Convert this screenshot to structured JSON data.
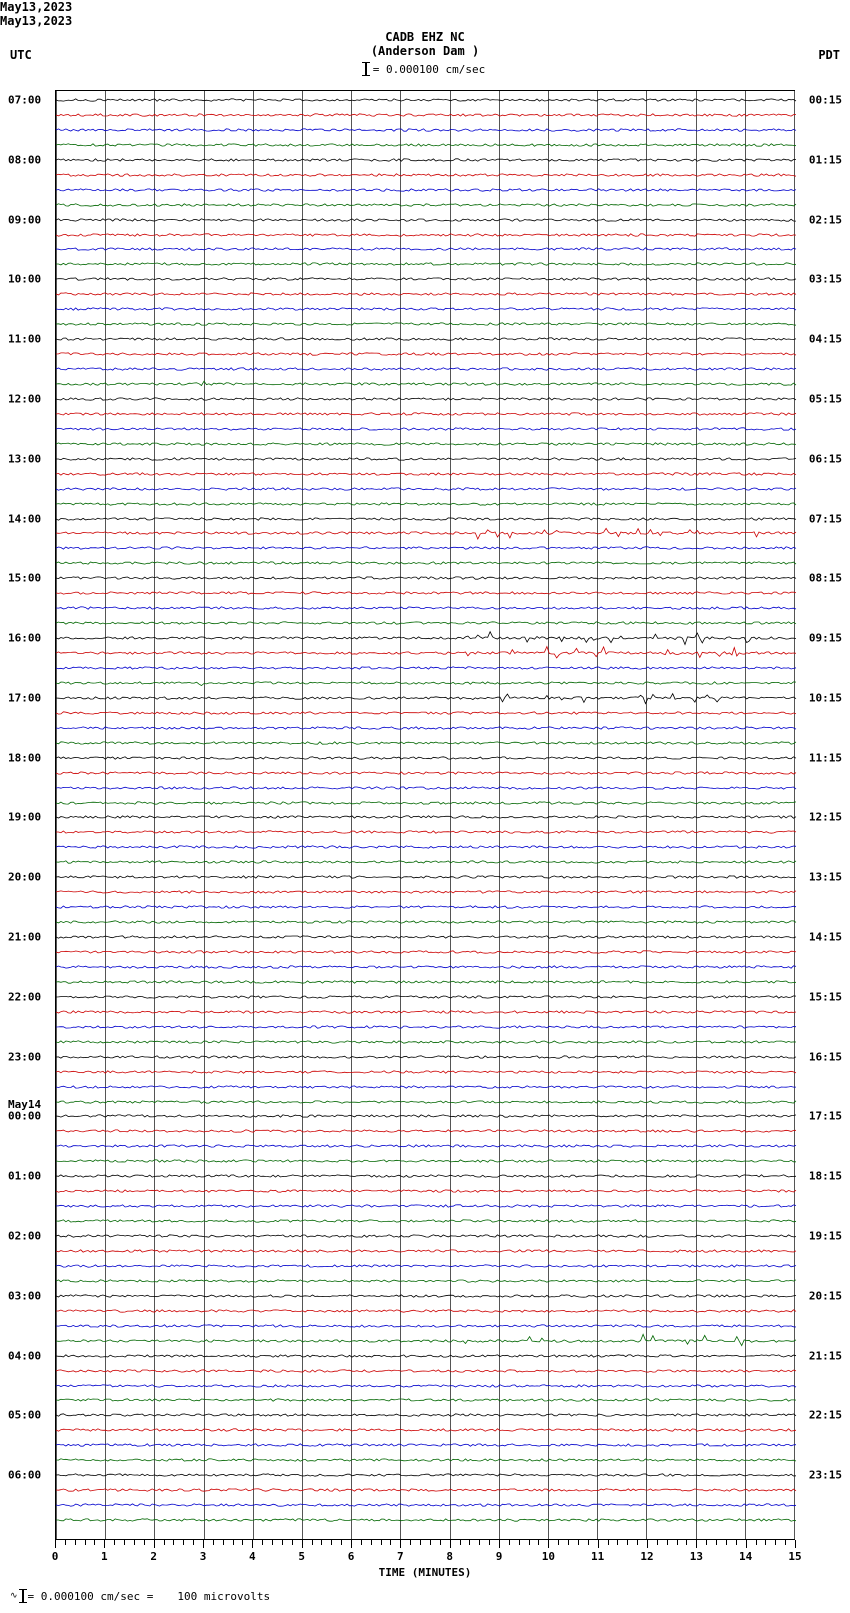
{
  "header": {
    "station": "CADB EHZ NC",
    "location": "(Anderson Dam )",
    "scale_text": "= 0.000100 cm/sec"
  },
  "timezone_left": "UTC",
  "timezone_right": "PDT",
  "date_left": "May13,2023",
  "date_right": "May13,2023",
  "footer": {
    "scale": "= 0.000100 cm/sec =",
    "volts": "100 microvolts"
  },
  "x_axis": {
    "title": "TIME (MINUTES)",
    "min": 0,
    "max": 15,
    "major_ticks": [
      0,
      1,
      2,
      3,
      4,
      5,
      6,
      7,
      8,
      9,
      10,
      11,
      12,
      13,
      14,
      15
    ]
  },
  "colors": {
    "black": "#000000",
    "red": "#cc0000",
    "blue": "#0000cc",
    "green": "#006600",
    "grid": "#555555",
    "background": "#ffffff"
  },
  "plot": {
    "num_traces": 96,
    "trace_spacing": 15.0,
    "color_cycle": [
      "#000000",
      "#cc0000",
      "#0000cc",
      "#006600"
    ],
    "left_hour_labels": [
      {
        "idx": 0,
        "text": "07:00"
      },
      {
        "idx": 4,
        "text": "08:00"
      },
      {
        "idx": 8,
        "text": "09:00"
      },
      {
        "idx": 12,
        "text": "10:00"
      },
      {
        "idx": 16,
        "text": "11:00"
      },
      {
        "idx": 20,
        "text": "12:00"
      },
      {
        "idx": 24,
        "text": "13:00"
      },
      {
        "idx": 28,
        "text": "14:00"
      },
      {
        "idx": 32,
        "text": "15:00"
      },
      {
        "idx": 36,
        "text": "16:00"
      },
      {
        "idx": 40,
        "text": "17:00"
      },
      {
        "idx": 44,
        "text": "18:00"
      },
      {
        "idx": 48,
        "text": "19:00"
      },
      {
        "idx": 52,
        "text": "20:00"
      },
      {
        "idx": 56,
        "text": "21:00"
      },
      {
        "idx": 60,
        "text": "22:00"
      },
      {
        "idx": 64,
        "text": "23:00"
      },
      {
        "idx": 68,
        "text": "00:00",
        "day": "May14"
      },
      {
        "idx": 72,
        "text": "01:00"
      },
      {
        "idx": 76,
        "text": "02:00"
      },
      {
        "idx": 80,
        "text": "03:00"
      },
      {
        "idx": 84,
        "text": "04:00"
      },
      {
        "idx": 88,
        "text": "05:00"
      },
      {
        "idx": 92,
        "text": "06:00"
      }
    ],
    "right_hour_labels": [
      {
        "idx": 0,
        "text": "00:15"
      },
      {
        "idx": 4,
        "text": "01:15"
      },
      {
        "idx": 8,
        "text": "02:15"
      },
      {
        "idx": 12,
        "text": "03:15"
      },
      {
        "idx": 16,
        "text": "04:15"
      },
      {
        "idx": 20,
        "text": "05:15"
      },
      {
        "idx": 24,
        "text": "06:15"
      },
      {
        "idx": 28,
        "text": "07:15"
      },
      {
        "idx": 32,
        "text": "08:15"
      },
      {
        "idx": 36,
        "text": "09:15"
      },
      {
        "idx": 40,
        "text": "10:15"
      },
      {
        "idx": 44,
        "text": "11:15"
      },
      {
        "idx": 48,
        "text": "12:15"
      },
      {
        "idx": 52,
        "text": "13:15"
      },
      {
        "idx": 56,
        "text": "14:15"
      },
      {
        "idx": 60,
        "text": "15:15"
      },
      {
        "idx": 64,
        "text": "16:15"
      },
      {
        "idx": 68,
        "text": "17:15"
      },
      {
        "idx": 72,
        "text": "18:15"
      },
      {
        "idx": 76,
        "text": "19:15"
      },
      {
        "idx": 80,
        "text": "20:15"
      },
      {
        "idx": 84,
        "text": "21:15"
      },
      {
        "idx": 88,
        "text": "22:15"
      },
      {
        "idx": 92,
        "text": "23:15"
      }
    ],
    "active_traces": [
      29,
      36,
      37,
      40,
      83
    ],
    "noise_amplitude": 1.2,
    "spike_amplitude": 6.0
  }
}
